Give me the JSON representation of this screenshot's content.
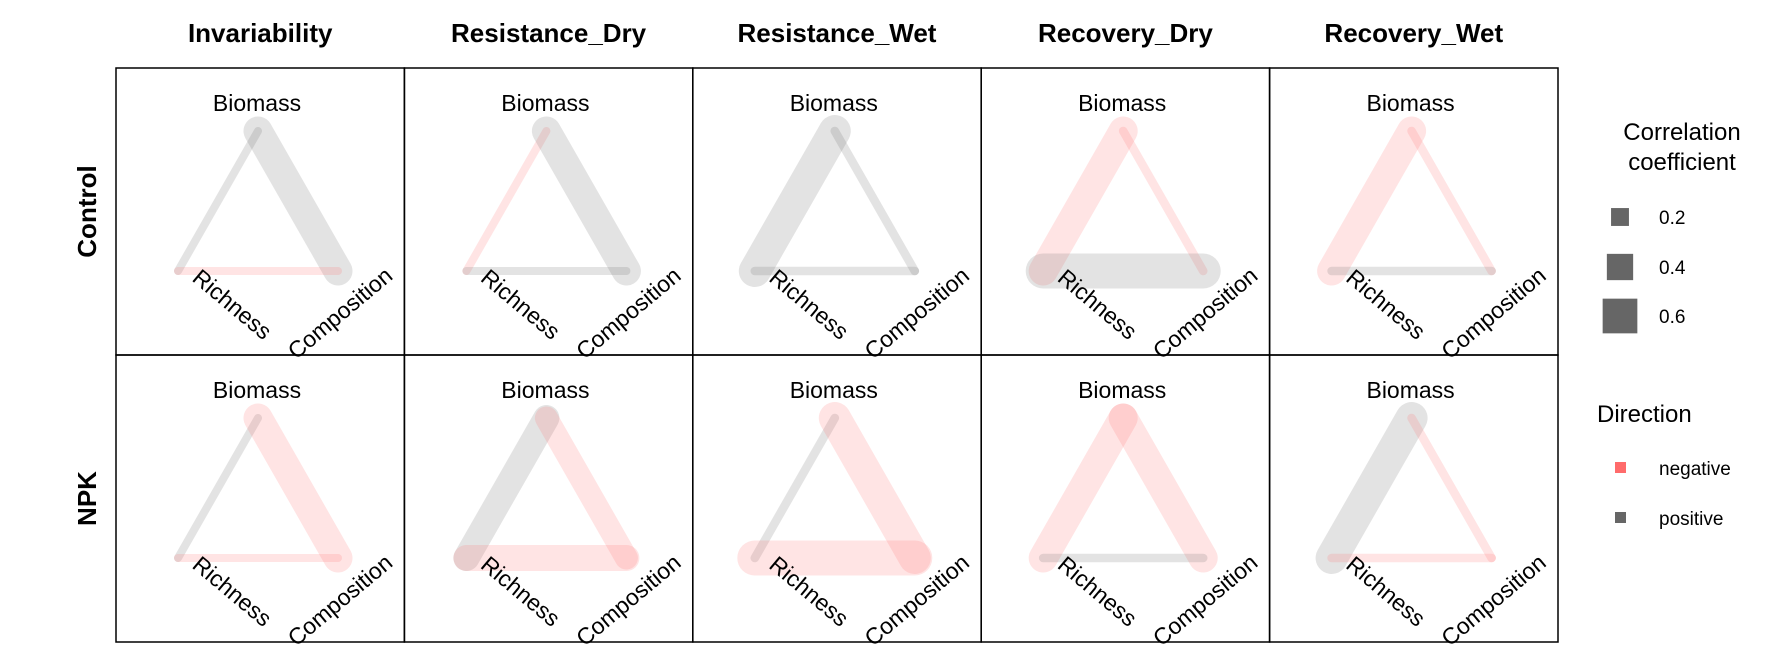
{
  "chart_data": {
    "type": "network",
    "columns": [
      "Invariability",
      "Resistance_Dry",
      "Resistance_Wet",
      "Recovery_Dry",
      "Recovery_Wet"
    ],
    "rows": [
      "Control",
      "NPK"
    ],
    "nodes": [
      "Biomass",
      "Richness",
      "Composition"
    ],
    "colors": {
      "negative": "#ff6b6b",
      "positive": "#666666"
    },
    "legend": {
      "size_title": "Correlation coefficient",
      "size_entries": [
        {
          "value": 0.2,
          "label": "0.2"
        },
        {
          "value": 0.4,
          "label": "0.4"
        },
        {
          "value": 0.6,
          "label": "0.6"
        }
      ],
      "direction_title": "Direction",
      "direction_entries": [
        {
          "key": "negative",
          "label": "negative"
        },
        {
          "key": "positive",
          "label": "positive"
        }
      ]
    },
    "panels": [
      {
        "row": "Control",
        "col": "Invariability",
        "edges": [
          {
            "from": "Biomass",
            "to": "Richness",
            "value": 0.05,
            "direction": "positive"
          },
          {
            "from": "Biomass",
            "to": "Composition",
            "value": 0.4,
            "direction": "positive"
          },
          {
            "from": "Richness",
            "to": "Composition",
            "value": 0.05,
            "direction": "negative"
          }
        ]
      },
      {
        "row": "Control",
        "col": "Resistance_Dry",
        "edges": [
          {
            "from": "Biomass",
            "to": "Richness",
            "value": 0.05,
            "direction": "negative"
          },
          {
            "from": "Biomass",
            "to": "Composition",
            "value": 0.4,
            "direction": "positive"
          },
          {
            "from": "Richness",
            "to": "Composition",
            "value": 0.05,
            "direction": "positive"
          }
        ]
      },
      {
        "row": "Control",
        "col": "Resistance_Wet",
        "edges": [
          {
            "from": "Biomass",
            "to": "Richness",
            "value": 0.45,
            "direction": "positive"
          },
          {
            "from": "Biomass",
            "to": "Composition",
            "value": 0.06,
            "direction": "positive"
          },
          {
            "from": "Richness",
            "to": "Composition",
            "value": 0.06,
            "direction": "positive"
          }
        ]
      },
      {
        "row": "Control",
        "col": "Recovery_Dry",
        "edges": [
          {
            "from": "Biomass",
            "to": "Richness",
            "value": 0.4,
            "direction": "negative"
          },
          {
            "from": "Biomass",
            "to": "Composition",
            "value": 0.06,
            "direction": "negative"
          },
          {
            "from": "Richness",
            "to": "Composition",
            "value": 0.5,
            "direction": "positive"
          }
        ]
      },
      {
        "row": "Control",
        "col": "Recovery_Wet",
        "edges": [
          {
            "from": "Biomass",
            "to": "Richness",
            "value": 0.4,
            "direction": "negative"
          },
          {
            "from": "Biomass",
            "to": "Composition",
            "value": 0.06,
            "direction": "negative"
          },
          {
            "from": "Richness",
            "to": "Composition",
            "value": 0.06,
            "direction": "positive"
          }
        ]
      },
      {
        "row": "NPK",
        "col": "Invariability",
        "edges": [
          {
            "from": "Biomass",
            "to": "Richness",
            "value": 0.05,
            "direction": "positive"
          },
          {
            "from": "Biomass",
            "to": "Composition",
            "value": 0.4,
            "direction": "negative"
          },
          {
            "from": "Richness",
            "to": "Composition",
            "value": 0.05,
            "direction": "negative"
          }
        ]
      },
      {
        "row": "NPK",
        "col": "Resistance_Dry",
        "edges": [
          {
            "from": "Biomass",
            "to": "Richness",
            "value": 0.35,
            "direction": "positive"
          },
          {
            "from": "Biomass",
            "to": "Composition",
            "value": 0.3,
            "direction": "negative"
          },
          {
            "from": "Richness",
            "to": "Composition",
            "value": 0.35,
            "direction": "negative"
          }
        ]
      },
      {
        "row": "NPK",
        "col": "Resistance_Wet",
        "edges": [
          {
            "from": "Biomass",
            "to": "Richness",
            "value": 0.06,
            "direction": "positive"
          },
          {
            "from": "Biomass",
            "to": "Composition",
            "value": 0.45,
            "direction": "negative"
          },
          {
            "from": "Richness",
            "to": "Composition",
            "value": 0.5,
            "direction": "negative"
          }
        ]
      },
      {
        "row": "NPK",
        "col": "Recovery_Dry",
        "edges": [
          {
            "from": "Biomass",
            "to": "Richness",
            "value": 0.4,
            "direction": "negative"
          },
          {
            "from": "Biomass",
            "to": "Composition",
            "value": 0.4,
            "direction": "negative"
          },
          {
            "from": "Richness",
            "to": "Composition",
            "value": 0.06,
            "direction": "positive"
          }
        ]
      },
      {
        "row": "NPK",
        "col": "Recovery_Wet",
        "edges": [
          {
            "from": "Biomass",
            "to": "Richness",
            "value": 0.45,
            "direction": "positive"
          },
          {
            "from": "Biomass",
            "to": "Composition",
            "value": 0.06,
            "direction": "negative"
          },
          {
            "from": "Richness",
            "to": "Composition",
            "value": 0.06,
            "direction": "negative"
          }
        ]
      }
    ]
  }
}
